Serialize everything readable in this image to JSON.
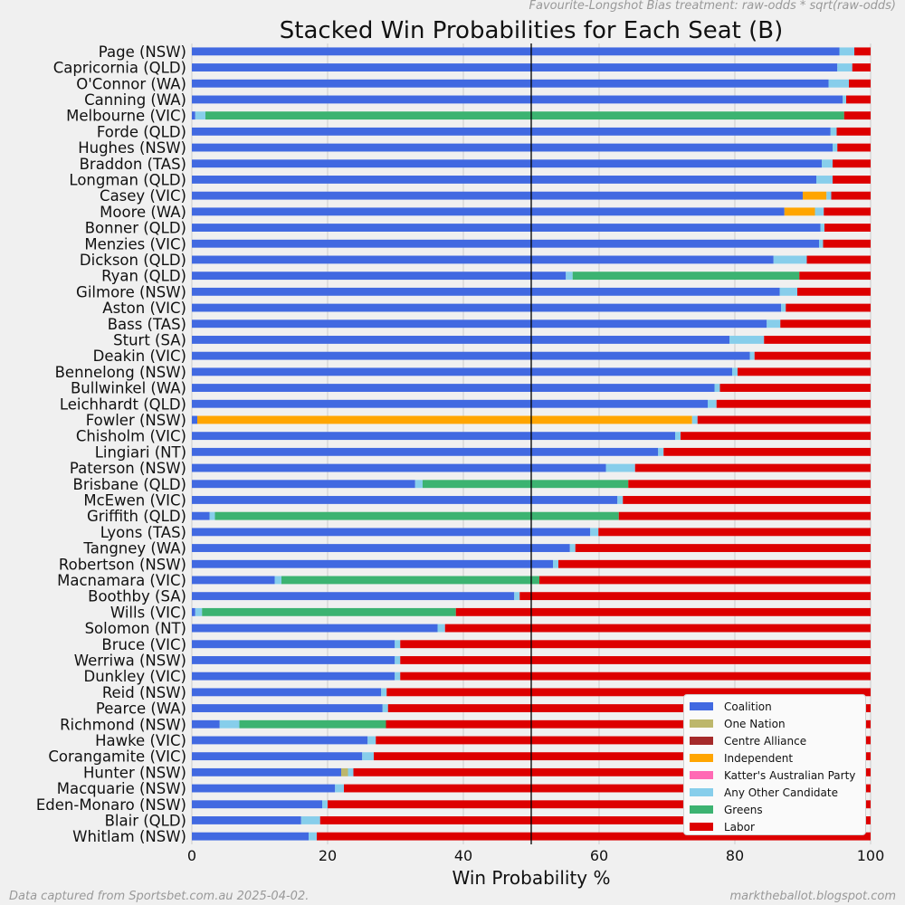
{
  "header": {
    "treatment_note": "Favourite-Longshot Bias treatment: raw-odds * sqrt(raw-odds)"
  },
  "footer": {
    "source": "Data captured from Sportsbet.com.au 2025-04-02.",
    "site": "marktheballot.blogspot.com"
  },
  "chart_data": {
    "type": "bar",
    "orientation": "horizontal",
    "stacked": true,
    "title": "Stacked Win Probabilities for Each Seat (B)",
    "xlabel": "Win Probability %",
    "ylabel": "",
    "xlim": [
      0,
      100
    ],
    "xticks": [
      0,
      20,
      40,
      60,
      80,
      100
    ],
    "reference_line": 50,
    "grid": true,
    "legend_position": "lower-right",
    "categories": [
      "Page (NSW)",
      "Capricornia (QLD)",
      "O'Connor (WA)",
      "Canning (WA)",
      "Melbourne (VIC)",
      "Forde (QLD)",
      "Hughes (NSW)",
      "Braddon (TAS)",
      "Longman (QLD)",
      "Casey (VIC)",
      "Moore (WA)",
      "Bonner (QLD)",
      "Menzies (VIC)",
      "Dickson (QLD)",
      "Ryan (QLD)",
      "Gilmore (NSW)",
      "Aston (VIC)",
      "Bass (TAS)",
      "Sturt  (SA)",
      "Deakin (VIC)",
      "Bennelong (NSW)",
      "Bullwinkel (WA)",
      "Leichhardt (QLD)",
      "Fowler (NSW)",
      "Chisholm (VIC)",
      "Lingiari (NT)",
      "Paterson (NSW)",
      "Brisbane (QLD)",
      "McEwen (VIC)",
      "Griffith (QLD)",
      "Lyons (TAS)",
      "Tangney (WA)",
      "Robertson (NSW)",
      "Macnamara (VIC)",
      "Boothby (SA)",
      "Wills (VIC)",
      "Solomon (NT)",
      "Bruce (VIC)",
      "Werriwa (NSW)",
      "Dunkley (VIC)",
      "Reid (NSW)",
      "Pearce (WA)",
      "Richmond (NSW)",
      "Hawke (VIC)",
      "Corangamite (VIC)",
      "Hunter (NSW)",
      "Macquarie (NSW)",
      "Eden-Monaro (NSW)",
      "Blair (QLD)",
      "Whitlam (NSW)"
    ],
    "series": [
      {
        "name": "Coalition",
        "color": "#4169e1",
        "values": [
          95.4,
          95.1,
          93.8,
          95.9,
          0.5,
          94.1,
          94.4,
          92.8,
          92.0,
          90.0,
          87.3,
          92.6,
          92.4,
          85.7,
          55.1,
          86.6,
          86.8,
          84.7,
          79.2,
          82.2,
          79.6,
          77.0,
          76.0,
          0.8,
          71.2,
          68.7,
          61.0,
          32.9,
          62.7,
          2.6,
          58.7,
          55.7,
          53.2,
          12.2,
          47.5,
          0.5,
          36.2,
          29.9,
          29.9,
          29.9,
          27.9,
          28.1,
          4.1,
          25.9,
          25.1,
          22.0,
          21.1,
          19.2,
          16.1,
          17.2
        ]
      },
      {
        "name": "One Nation",
        "color": "#bdb76b",
        "values": [
          0,
          0,
          0,
          0,
          0,
          0,
          0,
          0,
          0,
          0,
          0,
          0,
          0,
          0,
          0,
          0,
          0,
          0,
          0,
          0,
          0,
          0,
          0,
          0,
          0,
          0,
          0,
          0,
          0,
          0,
          0,
          0,
          0,
          0,
          0,
          0,
          0,
          0,
          0,
          0,
          0,
          0,
          0,
          0,
          0,
          1.0,
          0,
          0,
          0,
          0
        ]
      },
      {
        "name": "Centre Alliance",
        "color": "#a52a2a",
        "values": [
          0,
          0,
          0,
          0,
          0,
          0,
          0,
          0,
          0,
          0,
          0,
          0,
          0,
          0,
          0,
          0,
          0,
          0,
          0,
          0,
          0,
          0,
          0,
          0,
          0,
          0,
          0,
          0,
          0,
          0,
          0,
          0,
          0,
          0,
          0,
          0,
          0,
          0,
          0,
          0,
          0,
          0,
          0,
          0,
          0,
          0,
          0,
          0,
          0,
          0
        ]
      },
      {
        "name": "Independent",
        "color": "#ffa500",
        "values": [
          0,
          0,
          0,
          0,
          0,
          0,
          0,
          0,
          0,
          3.5,
          4.5,
          0,
          0,
          0,
          0,
          0,
          0,
          0,
          0,
          0,
          0,
          0,
          0,
          72.9,
          0,
          0,
          0,
          0,
          0,
          0,
          0,
          0,
          0,
          0,
          0,
          0,
          0,
          0,
          0,
          0,
          0,
          0,
          0,
          0,
          0,
          0,
          0,
          0,
          0,
          0
        ]
      },
      {
        "name": "Katter's Australian Party",
        "color": "#ff69b4",
        "values": [
          0,
          0,
          0,
          0,
          0,
          0,
          0,
          0,
          0,
          0,
          0,
          0,
          0,
          0,
          0,
          0,
          0,
          0,
          0,
          0,
          0,
          0,
          0,
          0,
          0,
          0,
          0,
          0,
          0,
          0,
          0,
          0,
          0,
          0,
          0,
          0,
          0,
          0,
          0,
          0,
          0,
          0,
          0,
          0,
          0,
          0,
          0,
          0,
          0,
          0
        ]
      },
      {
        "name": "Any Other Candidate",
        "color": "#87ceeb",
        "values": [
          2.2,
          2.2,
          3.0,
          0.5,
          1.5,
          0.9,
          0.7,
          1.6,
          2.4,
          0.7,
          1.3,
          0.6,
          0.6,
          4.9,
          1.0,
          2.6,
          0.7,
          2.0,
          5.1,
          0.7,
          0.8,
          0.8,
          1.3,
          0.8,
          0.8,
          0.8,
          4.3,
          1.1,
          0.8,
          0.8,
          1.2,
          0.8,
          0.8,
          1.0,
          0.8,
          1.0,
          1.1,
          0.8,
          0.8,
          0.8,
          0.8,
          0.8,
          2.9,
          1.2,
          1.7,
          0.8,
          1.3,
          0.8,
          2.8,
          1.2
        ]
      },
      {
        "name": "Greens",
        "color": "#3cb371",
        "values": [
          0,
          0,
          0,
          0,
          94.1,
          0,
          0,
          0,
          0,
          0,
          0,
          0,
          0,
          0,
          33.4,
          0,
          0,
          0,
          0,
          0,
          0,
          0,
          0,
          0,
          0,
          0,
          0,
          30.3,
          0,
          59.5,
          0,
          0,
          0,
          38.0,
          0,
          37.4,
          0,
          0,
          0,
          0,
          0,
          0,
          21.6,
          0,
          0,
          0,
          0,
          0,
          0,
          0
        ]
      },
      {
        "name": "Labor",
        "color": "#dd0000",
        "values": [
          2.4,
          2.7,
          3.2,
          3.6,
          3.9,
          5.0,
          4.9,
          5.6,
          5.6,
          5.8,
          6.9,
          6.8,
          7.0,
          9.4,
          10.5,
          10.8,
          12.5,
          13.3,
          15.7,
          17.1,
          19.6,
          22.2,
          22.7,
          25.5,
          28.0,
          30.5,
          34.7,
          35.7,
          36.5,
          37.1,
          40.1,
          43.5,
          46.0,
          48.8,
          51.7,
          61.1,
          62.7,
          69.3,
          69.3,
          69.3,
          71.3,
          71.1,
          71.4,
          72.9,
          73.2,
          76.2,
          77.6,
          80.0,
          81.1,
          81.6
        ]
      }
    ]
  }
}
